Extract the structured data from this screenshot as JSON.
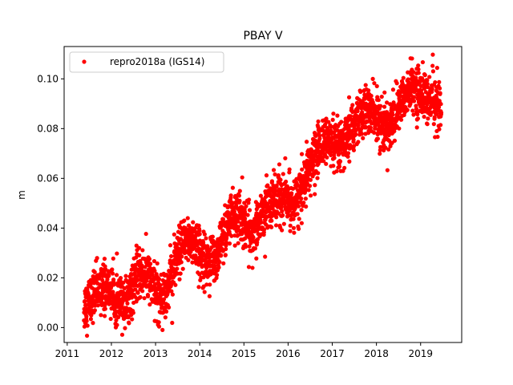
{
  "chart_data": {
    "type": "scatter",
    "title": "PBAY V",
    "xlabel": "",
    "ylabel": "m",
    "xlim": [
      2010.93,
      2019.93
    ],
    "ylim": [
      -0.006,
      0.113
    ],
    "xticks": [
      "2011",
      "2012",
      "2013",
      "2014",
      "2015",
      "2016",
      "2017",
      "2018",
      "2019"
    ],
    "yticks": [
      "0.00",
      "0.02",
      "0.04",
      "0.06",
      "0.08",
      "0.10"
    ],
    "legend_position": "top-left",
    "grid": false,
    "series": [
      {
        "name": "repro2018a (IGS14)",
        "color": "#ff0000",
        "marker": "circle",
        "time_start": 2011.38,
        "time_end": 2019.47,
        "x": [
          2011.38,
          2011.5,
          2011.62,
          2011.75,
          2011.88,
          2012.0,
          2012.12,
          2012.25,
          2012.38,
          2012.5,
          2012.62,
          2012.75,
          2012.88,
          2013.0,
          2013.12,
          2013.25,
          2013.38,
          2013.5,
          2013.62,
          2013.75,
          2013.88,
          2014.0,
          2014.12,
          2014.25,
          2014.38,
          2014.5,
          2014.62,
          2014.75,
          2014.88,
          2015.0,
          2015.12,
          2015.25,
          2015.38,
          2015.5,
          2015.62,
          2015.75,
          2015.88,
          2016.0,
          2016.12,
          2016.25,
          2016.38,
          2016.5,
          2016.62,
          2016.75,
          2016.88,
          2017.0,
          2017.12,
          2017.25,
          2017.38,
          2017.5,
          2017.62,
          2017.75,
          2017.88,
          2018.0,
          2018.12,
          2018.25,
          2018.38,
          2018.5,
          2018.62,
          2018.75,
          2018.88,
          2019.0,
          2019.12,
          2019.25,
          2019.38,
          2019.47
        ],
        "values": [
          0.008,
          0.011,
          0.014,
          0.016,
          0.016,
          0.014,
          0.011,
          0.009,
          0.012,
          0.018,
          0.021,
          0.022,
          0.02,
          0.015,
          0.012,
          0.016,
          0.022,
          0.028,
          0.033,
          0.036,
          0.034,
          0.03,
          0.027,
          0.026,
          0.029,
          0.035,
          0.041,
          0.045,
          0.045,
          0.042,
          0.039,
          0.04,
          0.043,
          0.048,
          0.051,
          0.052,
          0.052,
          0.051,
          0.05,
          0.053,
          0.058,
          0.064,
          0.07,
          0.074,
          0.075,
          0.073,
          0.071,
          0.073,
          0.077,
          0.081,
          0.085,
          0.087,
          0.087,
          0.085,
          0.081,
          0.08,
          0.083,
          0.088,
          0.093,
          0.096,
          0.096,
          0.094,
          0.092,
          0.091,
          0.09,
          0.089
        ],
        "scatter_spread": 0.0055
      }
    ]
  }
}
